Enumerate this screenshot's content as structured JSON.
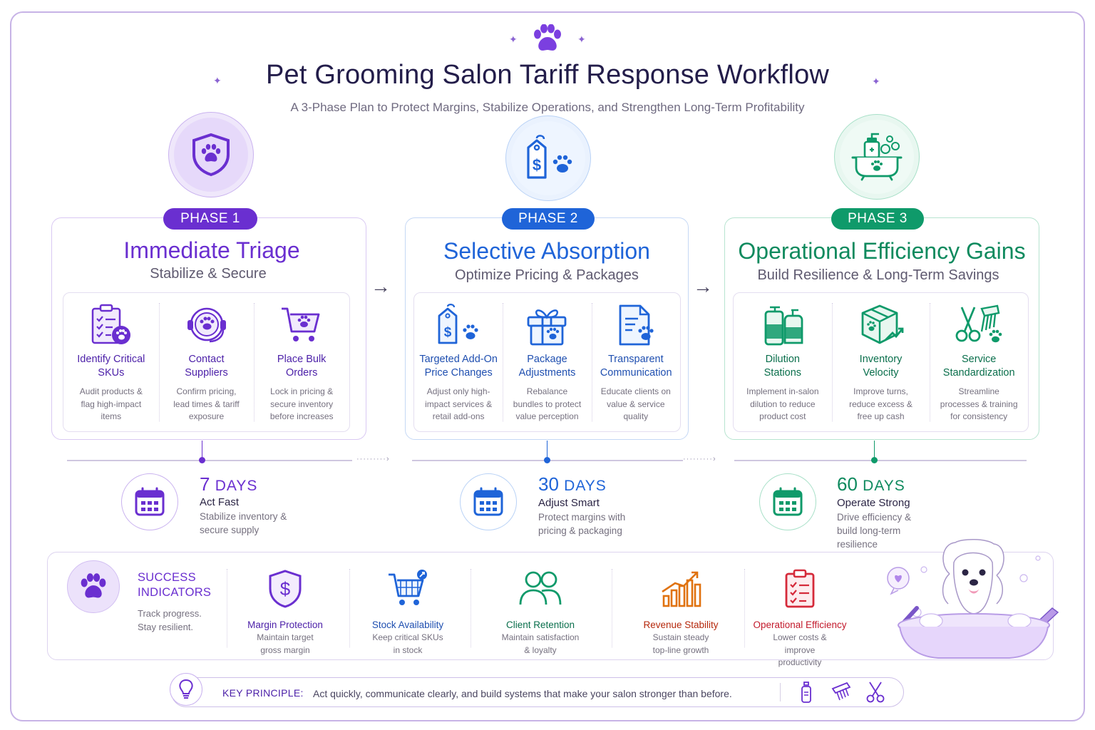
{
  "header": {
    "title": "Pet Grooming Salon Tariff Response Workflow",
    "subtitle": "A 3-Phase Plan to Protect Margins, Stabilize Operations, and Strengthen Long-Term Profitability",
    "icon": "paw-icon"
  },
  "colors": {
    "phase1": "#6a2fd0",
    "phase2": "#1f64d8",
    "phase3": "#0f9a6a",
    "revenue": "#e0720f",
    "efficiency": "#d52a3a"
  },
  "phases": [
    {
      "pill": "PHASE 1",
      "title": "Immediate Triage",
      "subtitle": "Stabilize & Secure",
      "icon": "shield-paw-icon",
      "items": [
        {
          "title": "Identify Critical SKUs",
          "desc": "Audit products & flag high-impact items",
          "icon": "clipboard-paw-icon"
        },
        {
          "title": "Contact Suppliers",
          "desc": "Confirm pricing, lead times & tariff exposure",
          "icon": "headset-paw-icon"
        },
        {
          "title": "Place Bulk Orders",
          "desc": "Lock in pricing & secure inventory before increases",
          "icon": "cart-paw-icon"
        }
      ],
      "timeline": {
        "days": "7",
        "unit": "DAYS",
        "label": "Act Fast",
        "desc": "Stabilize inventory & secure supply"
      }
    },
    {
      "pill": "PHASE 2",
      "title": "Selective Absorption",
      "subtitle": "Optimize Pricing & Packages",
      "icon": "price-tag-paw-icon",
      "items": [
        {
          "title": "Targeted Add-On Price Changes",
          "desc": "Adjust only high-impact services & retail add-ons",
          "icon": "price-tag-paw-icon"
        },
        {
          "title": "Package Adjustments",
          "desc": "Rebalance bundles to protect value perception",
          "icon": "gift-paw-icon"
        },
        {
          "title": "Transparent Communication",
          "desc": "Educate clients on value & service quality",
          "icon": "document-paw-icon"
        }
      ],
      "timeline": {
        "days": "30",
        "unit": "DAYS",
        "label": "Adjust Smart",
        "desc": "Protect margins with pricing & packaging"
      }
    },
    {
      "pill": "PHASE 3",
      "title": "Operational Efficiency Gains",
      "subtitle": "Build Resilience & Long-Term Savings",
      "icon": "bathtub-paw-icon",
      "items": [
        {
          "title": "Dilution Stations",
          "desc": "Implement in-salon dilution to reduce product cost",
          "icon": "bottles-icon"
        },
        {
          "title": "Inventory Velocity",
          "desc": "Improve turns, reduce excess & free up cash",
          "icon": "box-arrow-icon"
        },
        {
          "title": "Service Standardization",
          "desc": "Streamline processes & training for consistency",
          "icon": "scissors-comb-icon"
        }
      ],
      "timeline": {
        "days": "60",
        "unit": "DAYS",
        "label": "Operate Strong",
        "desc": "Drive efficiency & build long-term resilience"
      }
    }
  ],
  "success": {
    "title": "SUCCESS INDICATORS",
    "desc": "Track progress. Stay resilient.",
    "indicators": [
      {
        "title": "Margin Protection",
        "desc": "Maintain target gross margin",
        "icon": "shield-dollar-icon"
      },
      {
        "title": "Stock Availability",
        "desc": "Keep critical SKUs in stock",
        "icon": "cart-icon"
      },
      {
        "title": "Client Retention",
        "desc": "Maintain satisfaction & loyalty",
        "icon": "people-icon"
      },
      {
        "title": "Revenue Stability",
        "desc": "Sustain steady top-line growth",
        "icon": "bar-chart-icon"
      },
      {
        "title": "Operational Efficiency",
        "desc": "Lower costs & improve productivity",
        "icon": "clipboard-check-icon"
      }
    ]
  },
  "key_principle": {
    "label": "KEY PRINCIPLE:",
    "text": "Act quickly, communicate clearly, and build systems that make your salon stronger than before."
  }
}
